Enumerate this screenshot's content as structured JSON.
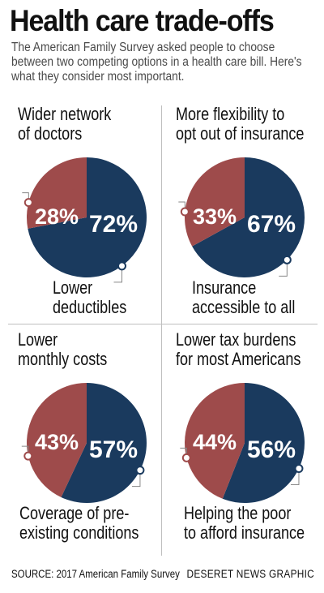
{
  "title": "Health care trade-offs",
  "subtitle": "The American Family Survey asked people to choose between two competing options in a health care bill. Here's what they consider most important.",
  "colors": {
    "red": "#9e4b4b",
    "blue": "#1a3a5e"
  },
  "chart_data": [
    {
      "type": "pie",
      "labels": [
        "Wider network of doctors",
        "Lower deductibles"
      ],
      "values": [
        28,
        72
      ],
      "display": [
        "28%",
        "72%"
      ],
      "label_lines": {
        "top": [
          "Wider network",
          "of doctors"
        ],
        "bottom": [
          "Lower",
          "deductibles"
        ]
      }
    },
    {
      "type": "pie",
      "labels": [
        "More flexibility to opt out of insurance",
        "Insurance accessible to all"
      ],
      "values": [
        33,
        67
      ],
      "display": [
        "33%",
        "67%"
      ],
      "label_lines": {
        "top": [
          "More flexibility to",
          "opt out of insurance"
        ],
        "bottom": [
          "Insurance",
          "accessible to all"
        ]
      }
    },
    {
      "type": "pie",
      "labels": [
        "Lower monthly costs",
        "Coverage of pre-existing conditions"
      ],
      "values": [
        43,
        57
      ],
      "display": [
        "43%",
        "57%"
      ],
      "label_lines": {
        "top": [
          "Lower",
          "monthly costs"
        ],
        "bottom": [
          "Coverage of pre-",
          "existing conditions"
        ]
      }
    },
    {
      "type": "pie",
      "labels": [
        "Lower tax burdens for most Americans",
        "Helping the poor to afford insurance"
      ],
      "values": [
        44,
        56
      ],
      "display": [
        "44%",
        "56%"
      ],
      "label_lines": {
        "top": [
          "Lower tax burdens",
          "for most Americans"
        ],
        "bottom": [
          "Helping the poor",
          "to afford insurance"
        ]
      }
    }
  ],
  "footer": {
    "source": "SOURCE: 2017 American Family Survey",
    "credit": "DESERET NEWS GRAPHIC"
  }
}
